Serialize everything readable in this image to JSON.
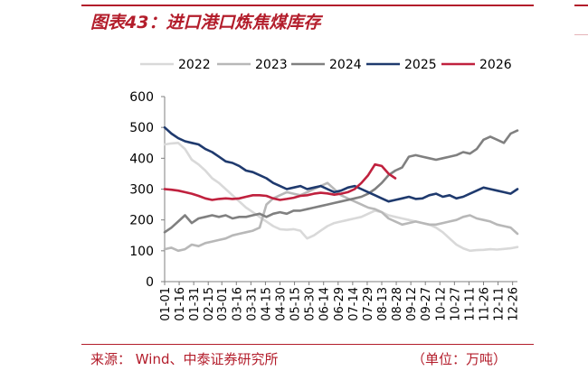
{
  "header": {
    "title": "图表43：进口港口炼焦煤库存"
  },
  "footer": {
    "source": "来源：  Wind、中泰证券研究所",
    "unit": "（单位：万吨）"
  },
  "colors": {
    "brand": "#b31d2b",
    "axis": "#7f7f7f"
  },
  "chart_data": {
    "type": "line",
    "title": "",
    "xlabel": "",
    "ylabel": "",
    "ylim": [
      0,
      600
    ],
    "yticks": [
      0,
      100,
      200,
      300,
      400,
      500,
      600
    ],
    "grid": false,
    "legend_position": "top",
    "x_tick_labels": [
      "01-01",
      "01-16",
      "01-31",
      "02-15",
      "03-01",
      "03-16",
      "03-31",
      "04-15",
      "04-30",
      "05-15",
      "05-30",
      "06-14",
      "06-29",
      "07-14",
      "07-29",
      "08-13",
      "08-28",
      "09-12",
      "09-27",
      "10-12",
      "10-27",
      "11-11",
      "11-26",
      "12-11",
      "12-26"
    ],
    "x_tick_days": [
      0,
      15,
      30,
      45,
      59,
      74,
      89,
      104,
      119,
      134,
      149,
      164,
      179,
      194,
      209,
      224,
      239,
      254,
      269,
      284,
      299,
      314,
      329,
      344,
      359
    ],
    "x_unit": "day of year (01-01 = 0)",
    "series": [
      {
        "name": "2022",
        "color": "#d9d9d9",
        "x": [
          0,
          7,
          14,
          21,
          28,
          35,
          42,
          49,
          56,
          63,
          70,
          77,
          84,
          91,
          98,
          105,
          112,
          119,
          126,
          133,
          140,
          147,
          154,
          161,
          168,
          175,
          182,
          189,
          196,
          203,
          210,
          217,
          224,
          231,
          238,
          245,
          252,
          259,
          266,
          273,
          280,
          287,
          294,
          301,
          308,
          315,
          322,
          329,
          336,
          343,
          350,
          357,
          364
        ],
        "values": [
          445,
          448,
          450,
          430,
          395,
          380,
          360,
          335,
          320,
          300,
          280,
          260,
          240,
          225,
          210,
          195,
          180,
          170,
          168,
          170,
          165,
          140,
          150,
          165,
          180,
          190,
          195,
          200,
          205,
          210,
          220,
          230,
          225,
          215,
          210,
          205,
          200,
          195,
          190,
          185,
          175,
          160,
          140,
          120,
          108,
          100,
          102,
          103,
          105,
          104,
          106,
          108,
          112
        ]
      },
      {
        "name": "2023",
        "color": "#b8b8b8",
        "x": [
          0,
          7,
          14,
          21,
          28,
          35,
          42,
          49,
          56,
          63,
          70,
          77,
          84,
          91,
          98,
          105,
          112,
          119,
          126,
          133,
          140,
          147,
          154,
          161,
          168,
          175,
          182,
          189,
          196,
          203,
          210,
          217,
          224,
          231,
          238,
          245,
          252,
          259,
          266,
          273,
          280,
          287,
          294,
          301,
          308,
          315,
          322,
          329,
          336,
          343,
          350,
          357,
          364
        ],
        "values": [
          105,
          110,
          100,
          105,
          120,
          115,
          125,
          130,
          135,
          140,
          150,
          155,
          160,
          165,
          175,
          250,
          270,
          280,
          290,
          285,
          280,
          290,
          300,
          310,
          320,
          300,
          280,
          270,
          260,
          250,
          240,
          235,
          225,
          205,
          195,
          185,
          190,
          195,
          190,
          185,
          185,
          190,
          195,
          200,
          210,
          215,
          205,
          200,
          195,
          185,
          180,
          175,
          155
        ]
      },
      {
        "name": "2024",
        "color": "#808080",
        "x": [
          0,
          7,
          14,
          21,
          28,
          35,
          42,
          49,
          56,
          63,
          70,
          77,
          84,
          91,
          98,
          105,
          112,
          119,
          126,
          133,
          140,
          147,
          154,
          161,
          168,
          175,
          182,
          189,
          196,
          203,
          210,
          217,
          224,
          231,
          238,
          245,
          252,
          259,
          266,
          273,
          280,
          287,
          294,
          301,
          308,
          315,
          322,
          329,
          336,
          343,
          350,
          357,
          364
        ],
        "values": [
          160,
          175,
          195,
          215,
          190,
          205,
          210,
          215,
          210,
          215,
          205,
          210,
          210,
          215,
          220,
          210,
          220,
          225,
          220,
          230,
          230,
          235,
          240,
          245,
          250,
          255,
          260,
          265,
          270,
          275,
          285,
          300,
          320,
          345,
          360,
          370,
          405,
          410,
          405,
          400,
          395,
          400,
          405,
          410,
          420,
          415,
          430,
          460,
          470,
          460,
          450,
          480,
          490
        ]
      },
      {
        "name": "2025",
        "color": "#1f3a6e",
        "x": [
          0,
          7,
          14,
          21,
          28,
          35,
          42,
          49,
          56,
          63,
          70,
          77,
          84,
          91,
          98,
          105,
          112,
          119,
          126,
          133,
          140,
          147,
          154,
          161,
          168,
          175,
          182,
          189,
          196,
          203,
          210,
          217,
          224,
          231,
          238,
          245,
          252,
          259,
          266,
          273,
          280,
          287,
          294,
          301,
          308,
          315,
          322,
          329,
          336,
          343,
          350,
          357,
          364
        ],
        "values": [
          500,
          480,
          465,
          455,
          450,
          445,
          430,
          420,
          405,
          390,
          385,
          375,
          360,
          355,
          345,
          335,
          320,
          310,
          300,
          305,
          310,
          300,
          305,
          310,
          300,
          290,
          295,
          305,
          310,
          300,
          290,
          280,
          270,
          260,
          265,
          270,
          275,
          268,
          270,
          280,
          285,
          275,
          280,
          270,
          275,
          285,
          295,
          305,
          300,
          295,
          290,
          285,
          300
        ]
      },
      {
        "name": "2026",
        "color": "#c0213e",
        "x": [
          0,
          7,
          14,
          21,
          28,
          35,
          42,
          49,
          56,
          63,
          70,
          77,
          84,
          91,
          98,
          105,
          112,
          119,
          126,
          133,
          140,
          147,
          154,
          161,
          168,
          175,
          182,
          189,
          196,
          203,
          210,
          217,
          224,
          231,
          238
        ],
        "values": [
          300,
          298,
          295,
          290,
          285,
          278,
          270,
          265,
          268,
          270,
          268,
          270,
          275,
          280,
          280,
          278,
          270,
          265,
          268,
          272,
          278,
          280,
          285,
          288,
          286,
          282,
          285,
          290,
          300,
          320,
          345,
          380,
          375,
          350,
          335
        ]
      }
    ]
  }
}
